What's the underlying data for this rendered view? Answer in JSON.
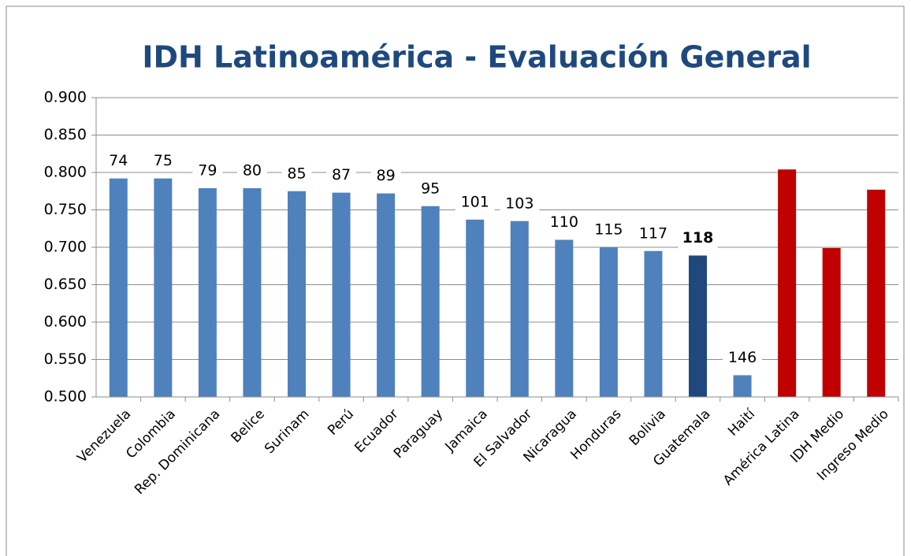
{
  "chart_data": {
    "type": "bar",
    "title": "IDH Latinoamérica - Evaluación General",
    "categories": [
      "Venezuela",
      "Colombia",
      "Rep. Dominicana",
      "Belice",
      "Surinam",
      "Perú",
      "Ecuador",
      "Paraguay",
      "Jamaica",
      "El Salvador",
      "Nicaragua",
      "Honduras",
      "Bolivia",
      "Guatemala",
      "Haití",
      "América Latina",
      "IDH Medio",
      "Ingreso Medio"
    ],
    "values": [
      0.792,
      0.792,
      0.779,
      0.779,
      0.775,
      0.773,
      0.772,
      0.755,
      0.737,
      0.735,
      0.71,
      0.7,
      0.695,
      0.689,
      0.529,
      0.804,
      0.699,
      0.777
    ],
    "ranks": [
      74,
      75,
      79,
      80,
      85,
      87,
      89,
      95,
      101,
      103,
      110,
      115,
      117,
      118,
      146,
      null,
      null,
      null
    ],
    "colors": [
      "#4f81bd",
      "#4f81bd",
      "#4f81bd",
      "#4f81bd",
      "#4f81bd",
      "#4f81bd",
      "#4f81bd",
      "#4f81bd",
      "#4f81bd",
      "#4f81bd",
      "#4f81bd",
      "#4f81bd",
      "#4f81bd",
      "#1f497d",
      "#4f81bd",
      "#c00000",
      "#c00000",
      "#c00000"
    ],
    "highlight_index": 13,
    "ylim": [
      0.5,
      0.9
    ],
    "yticks": [
      {
        "value": 0.5,
        "label": "0.500"
      },
      {
        "value": 0.55,
        "label": "0.550"
      },
      {
        "value": 0.6,
        "label": "0.600"
      },
      {
        "value": 0.65,
        "label": "0.650"
      },
      {
        "value": 0.7,
        "label": "0.700"
      },
      {
        "value": 0.75,
        "label": "0.750"
      },
      {
        "value": 0.8,
        "label": "0.800"
      },
      {
        "value": 0.85,
        "label": "0.850"
      },
      {
        "value": 0.9,
        "label": "0.900"
      }
    ],
    "grid": true
  }
}
